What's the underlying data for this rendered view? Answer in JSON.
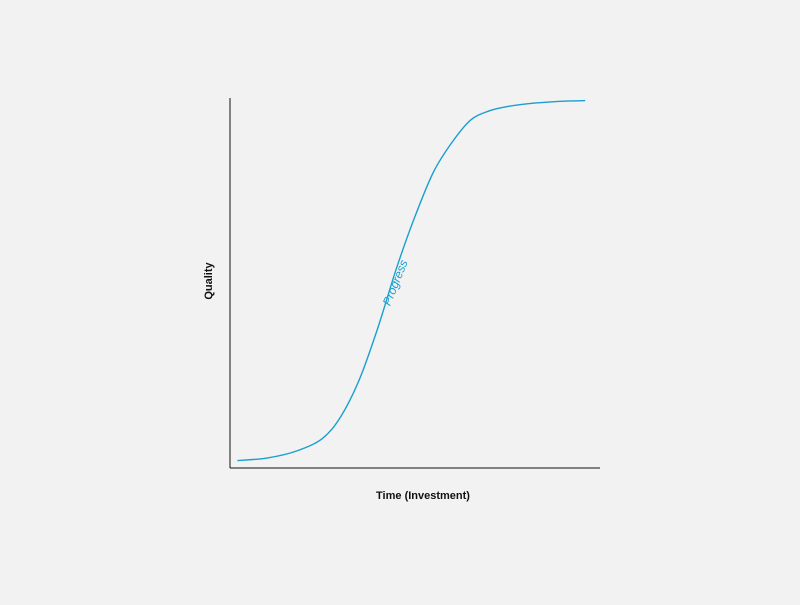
{
  "colors": {
    "background": "#f2f2f2",
    "axis": "#111111",
    "series": "#1a9fd0"
  },
  "chart_data": {
    "type": "line",
    "title": "",
    "xlabel": "Time (Investment)",
    "ylabel": "Quality",
    "xlim": [
      0,
      100
    ],
    "ylim": [
      0,
      100
    ],
    "grid": false,
    "show_ticks": false,
    "series": [
      {
        "name": "Progress",
        "x": [
          2,
          10,
          18,
          25,
          30,
          35,
          40,
          45,
          50,
          55,
          60,
          65,
          70,
          75,
          80,
          86,
          92,
          96
        ],
        "y": [
          2,
          2.7,
          4.6,
          8,
          14,
          24,
          38,
          54,
          68,
          80,
          88,
          94,
          96.5,
          97.7,
          98.4,
          98.9,
          99.2,
          99.3
        ]
      }
    ]
  }
}
